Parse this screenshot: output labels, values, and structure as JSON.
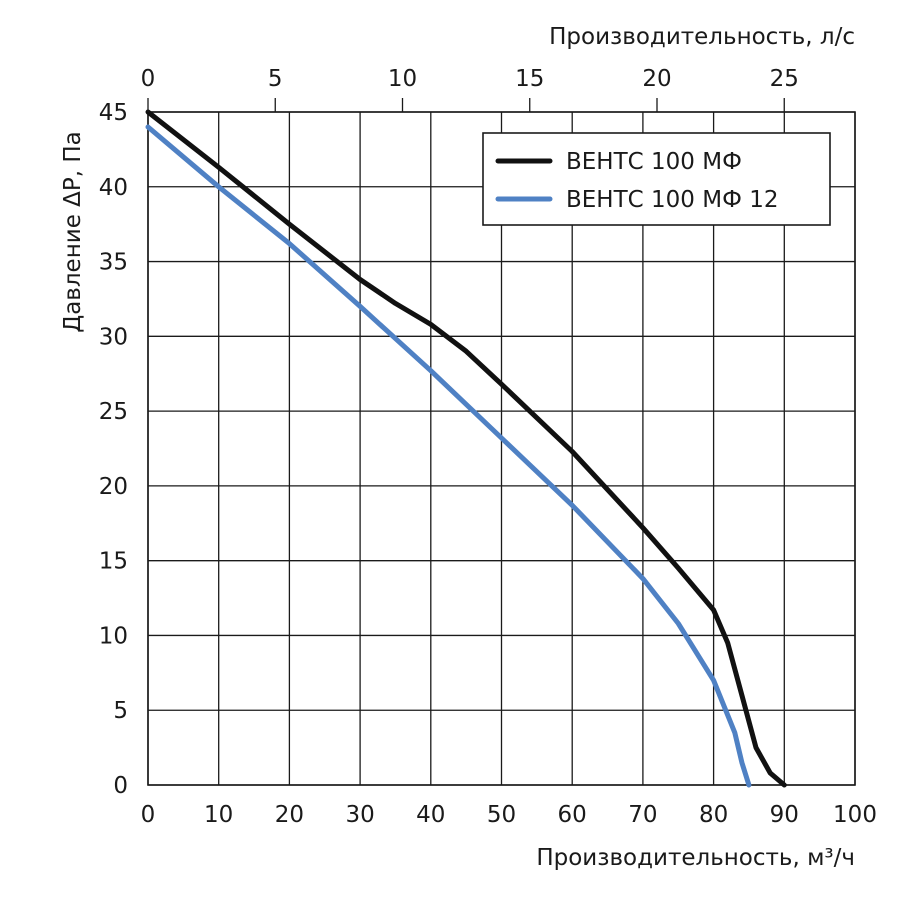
{
  "chart_data": {
    "type": "line",
    "xlabel": "Производительность, м³/ч",
    "x2label": "Производительность, л/с",
    "ylabel": "Давление ΔP, Па",
    "xlim": [
      0,
      100
    ],
    "ylim": [
      0,
      45
    ],
    "x2lim": [
      0,
      27.78
    ],
    "xticks": [
      0,
      10,
      20,
      30,
      40,
      50,
      60,
      70,
      80,
      90,
      100
    ],
    "x2ticks": [
      0,
      5,
      10,
      15,
      20,
      25
    ],
    "yticks": [
      0,
      5,
      10,
      15,
      20,
      25,
      30,
      35,
      40,
      45
    ],
    "grid": true,
    "legend": "top-right",
    "series": [
      {
        "name": "ВЕНТС 100 МФ",
        "color": "#111111",
        "points": [
          [
            0,
            45
          ],
          [
            10,
            41.3
          ],
          [
            20,
            37.5
          ],
          [
            30,
            33.8
          ],
          [
            35,
            32.2
          ],
          [
            40,
            30.8
          ],
          [
            45,
            29
          ],
          [
            50,
            26.8
          ],
          [
            60,
            22.3
          ],
          [
            70,
            17.2
          ],
          [
            75,
            14.5
          ],
          [
            80,
            11.7
          ],
          [
            82,
            9.5
          ],
          [
            84,
            6
          ],
          [
            86,
            2.5
          ],
          [
            88,
            0.8
          ],
          [
            90,
            0
          ]
        ]
      },
      {
        "name": "ВЕНТС 100 МФ 12",
        "color": "#4f81c4",
        "points": [
          [
            0,
            44
          ],
          [
            10,
            40
          ],
          [
            20,
            36.2
          ],
          [
            30,
            32
          ],
          [
            40,
            27.7
          ],
          [
            50,
            23.2
          ],
          [
            60,
            18.7
          ],
          [
            70,
            13.8
          ],
          [
            75,
            10.8
          ],
          [
            80,
            7
          ],
          [
            83,
            3.5
          ],
          [
            84,
            1.5
          ],
          [
            85,
            0
          ]
        ]
      }
    ]
  }
}
